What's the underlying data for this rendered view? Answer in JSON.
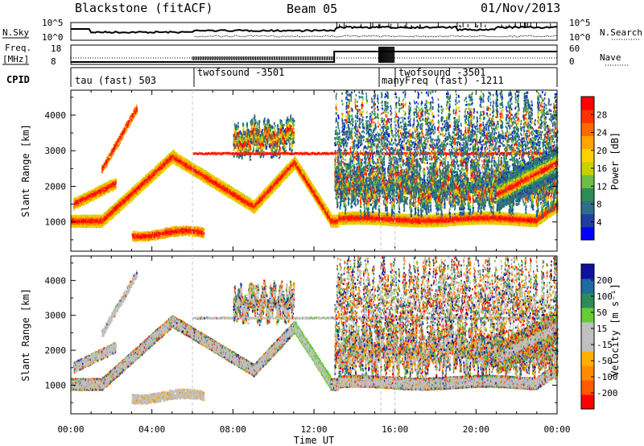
{
  "header": {
    "title": "Blackstone (fitACF)",
    "beam": "Beam 05",
    "date": "01/Nov/2013"
  },
  "strips": {
    "nsky_label": "N.Sky",
    "nsearch_label": "N.Search",
    "freq_label": "Freq.",
    "freq_unit": "[MHz]",
    "nave_label": "Nave",
    "cpid_label": "CPID",
    "noise_ticks": [
      "10^5",
      "10^0"
    ],
    "freq_ticks": [
      "18",
      "8"
    ],
    "nave_ticks": [
      "60",
      "0"
    ]
  },
  "cpid": [
    {
      "label": "tau (fast) 503"
    },
    {
      "label": "twofsound -3501"
    },
    {
      "label": "manyFreq (fast) -1211"
    },
    {
      "label": "twofsound -3501"
    }
  ],
  "colors": {
    "power": [
      "#0000ff",
      "#1f3fa0",
      "#2f6e8a",
      "#2e8b57",
      "#6dbe45",
      "#c8d200",
      "#ffd100",
      "#ffa500",
      "#ff6a00",
      "#ff3300",
      "#ff0000"
    ],
    "velocity": [
      "#ff0000",
      "#ff5a00",
      "#ff8c00",
      "#ffb000",
      "#c0c0c0",
      "#c0c0c0",
      "#66cc33",
      "#2e8b57",
      "#1f6aa0",
      "#1010a0"
    ]
  },
  "chart_data": [
    {
      "type": "heatmap",
      "name": "power",
      "ylabel": "Slant Range [km]",
      "colorbar_label": "Power [dB]",
      "colorbar_ticks": [
        "28",
        "24",
        "20",
        "16",
        "12",
        "8",
        "4"
      ],
      "x_ticks": [
        "00:00",
        "04:00",
        "08:00",
        "12:00",
        "16:00",
        "20:00",
        "00:00"
      ],
      "y_ticks": [
        1000,
        2000,
        3000,
        4000
      ],
      "ylim": [
        180,
        4700
      ],
      "xlim_hours": [
        0,
        24
      ]
    },
    {
      "type": "heatmap",
      "name": "velocity",
      "ylabel": "Slant Range [km]",
      "colorbar_label": "Velocity [m s⁻¹]",
      "colorbar_ticks": [
        "200",
        "100",
        "50",
        "15",
        "-15",
        "-50",
        "-100",
        "-200"
      ],
      "xlabel": "Time UT",
      "x_ticks": [
        "00:00",
        "04:00",
        "08:00",
        "12:00",
        "16:00",
        "20:00",
        "00:00"
      ],
      "y_ticks": [
        1000,
        2000,
        3000,
        4000
      ],
      "ylim": [
        180,
        4700
      ],
      "xlim_hours": [
        0,
        24
      ]
    }
  ]
}
